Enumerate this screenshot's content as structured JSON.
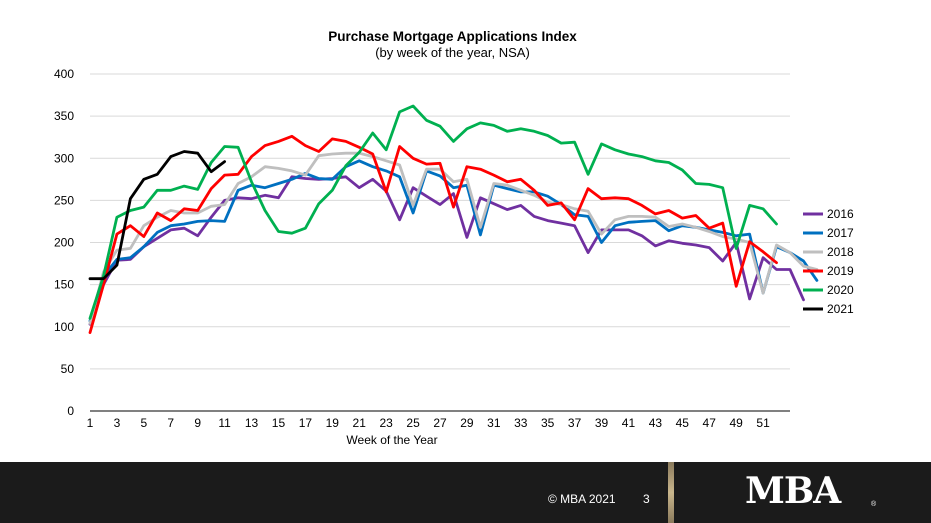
{
  "slide": {
    "copyright": "© MBA 2021",
    "page_number": "3",
    "logo_text": "MBA",
    "logo_mark": "®"
  },
  "chart_data": {
    "type": "line",
    "title": "Purchase Mortgage Applications Index",
    "subtitle": "(by week of the year, NSA)",
    "xlabel": "Week of the Year",
    "ylabel": "",
    "xlim": [
      1,
      53
    ],
    "ylim": [
      0,
      400
    ],
    "yticks": [
      0,
      50,
      100,
      150,
      200,
      250,
      300,
      350,
      400
    ],
    "xticks": [
      1,
      3,
      5,
      7,
      9,
      11,
      13,
      15,
      17,
      19,
      21,
      23,
      25,
      27,
      29,
      31,
      33,
      35,
      37,
      39,
      41,
      43,
      45,
      47,
      49,
      51
    ],
    "grid": "horizontal",
    "legend": "right",
    "series": [
      {
        "name": "2016",
        "color": "#7030a0",
        "values": [
          103,
          150,
          179,
          180,
          195,
          205,
          215,
          217,
          208,
          230,
          250,
          253,
          252,
          256,
          253,
          278,
          276,
          275,
          276,
          278,
          265,
          275,
          261,
          227,
          265,
          255,
          245,
          258,
          206,
          253,
          246,
          239,
          244,
          231,
          226,
          223,
          220,
          188,
          215,
          215,
          215,
          208,
          196,
          202,
          199,
          197,
          194,
          178,
          200,
          133,
          182,
          168,
          168,
          132
        ]
      },
      {
        "name": "2017",
        "color": "#0070c0",
        "values": [
          107,
          160,
          180,
          182,
          195,
          212,
          220,
          222,
          225,
          226,
          225,
          262,
          268,
          265,
          270,
          275,
          282,
          276,
          275,
          290,
          297,
          290,
          285,
          278,
          235,
          285,
          279,
          265,
          268,
          209,
          268,
          264,
          260,
          260,
          255,
          245,
          233,
          231,
          200,
          220,
          224,
          225,
          226,
          214,
          220,
          218,
          215,
          212,
          208,
          210,
          140,
          195,
          188,
          178,
          155
        ]
      },
      {
        "name": "2018",
        "color": "#bfbfbf",
        "values": [
          104,
          165,
          191,
          193,
          220,
          230,
          238,
          235,
          235,
          243,
          245,
          270,
          278,
          290,
          288,
          285,
          280,
          303,
          305,
          306,
          306,
          302,
          297,
          292,
          244,
          287,
          287,
          272,
          275,
          218,
          270,
          268,
          262,
          256,
          248,
          245,
          240,
          237,
          210,
          227,
          231,
          231,
          230,
          219,
          222,
          218,
          213,
          207,
          204,
          200,
          140,
          197,
          188,
          172,
          168
        ]
      },
      {
        "name": "2019",
        "color": "#ff0000",
        "values": [
          93,
          150,
          210,
          220,
          207,
          235,
          226,
          240,
          238,
          264,
          280,
          281,
          302,
          315,
          320,
          326,
          315,
          308,
          323,
          320,
          313,
          305,
          260,
          314,
          300,
          293,
          294,
          242,
          290,
          287,
          280,
          272,
          275,
          262,
          244,
          247,
          227,
          264,
          252,
          253,
          252,
          244,
          234,
          238,
          229,
          232,
          217,
          223,
          148,
          201,
          189,
          176
        ]
      },
      {
        "name": "2020",
        "color": "#00b050",
        "values": [
          110,
          160,
          230,
          238,
          242,
          262,
          262,
          267,
          263,
          295,
          314,
          313,
          272,
          238,
          213,
          211,
          217,
          246,
          262,
          291,
          307,
          330,
          310,
          355,
          362,
          345,
          338,
          320,
          335,
          342,
          339,
          332,
          335,
          332,
          327,
          318,
          319,
          281,
          317,
          310,
          305,
          302,
          297,
          295,
          286,
          270,
          269,
          265,
          193,
          244,
          240,
          222
        ]
      },
      {
        "name": "2021",
        "color": "#000000",
        "values": [
          157,
          157,
          173,
          252,
          275,
          281,
          302,
          308,
          306,
          284,
          296
        ]
      }
    ]
  }
}
